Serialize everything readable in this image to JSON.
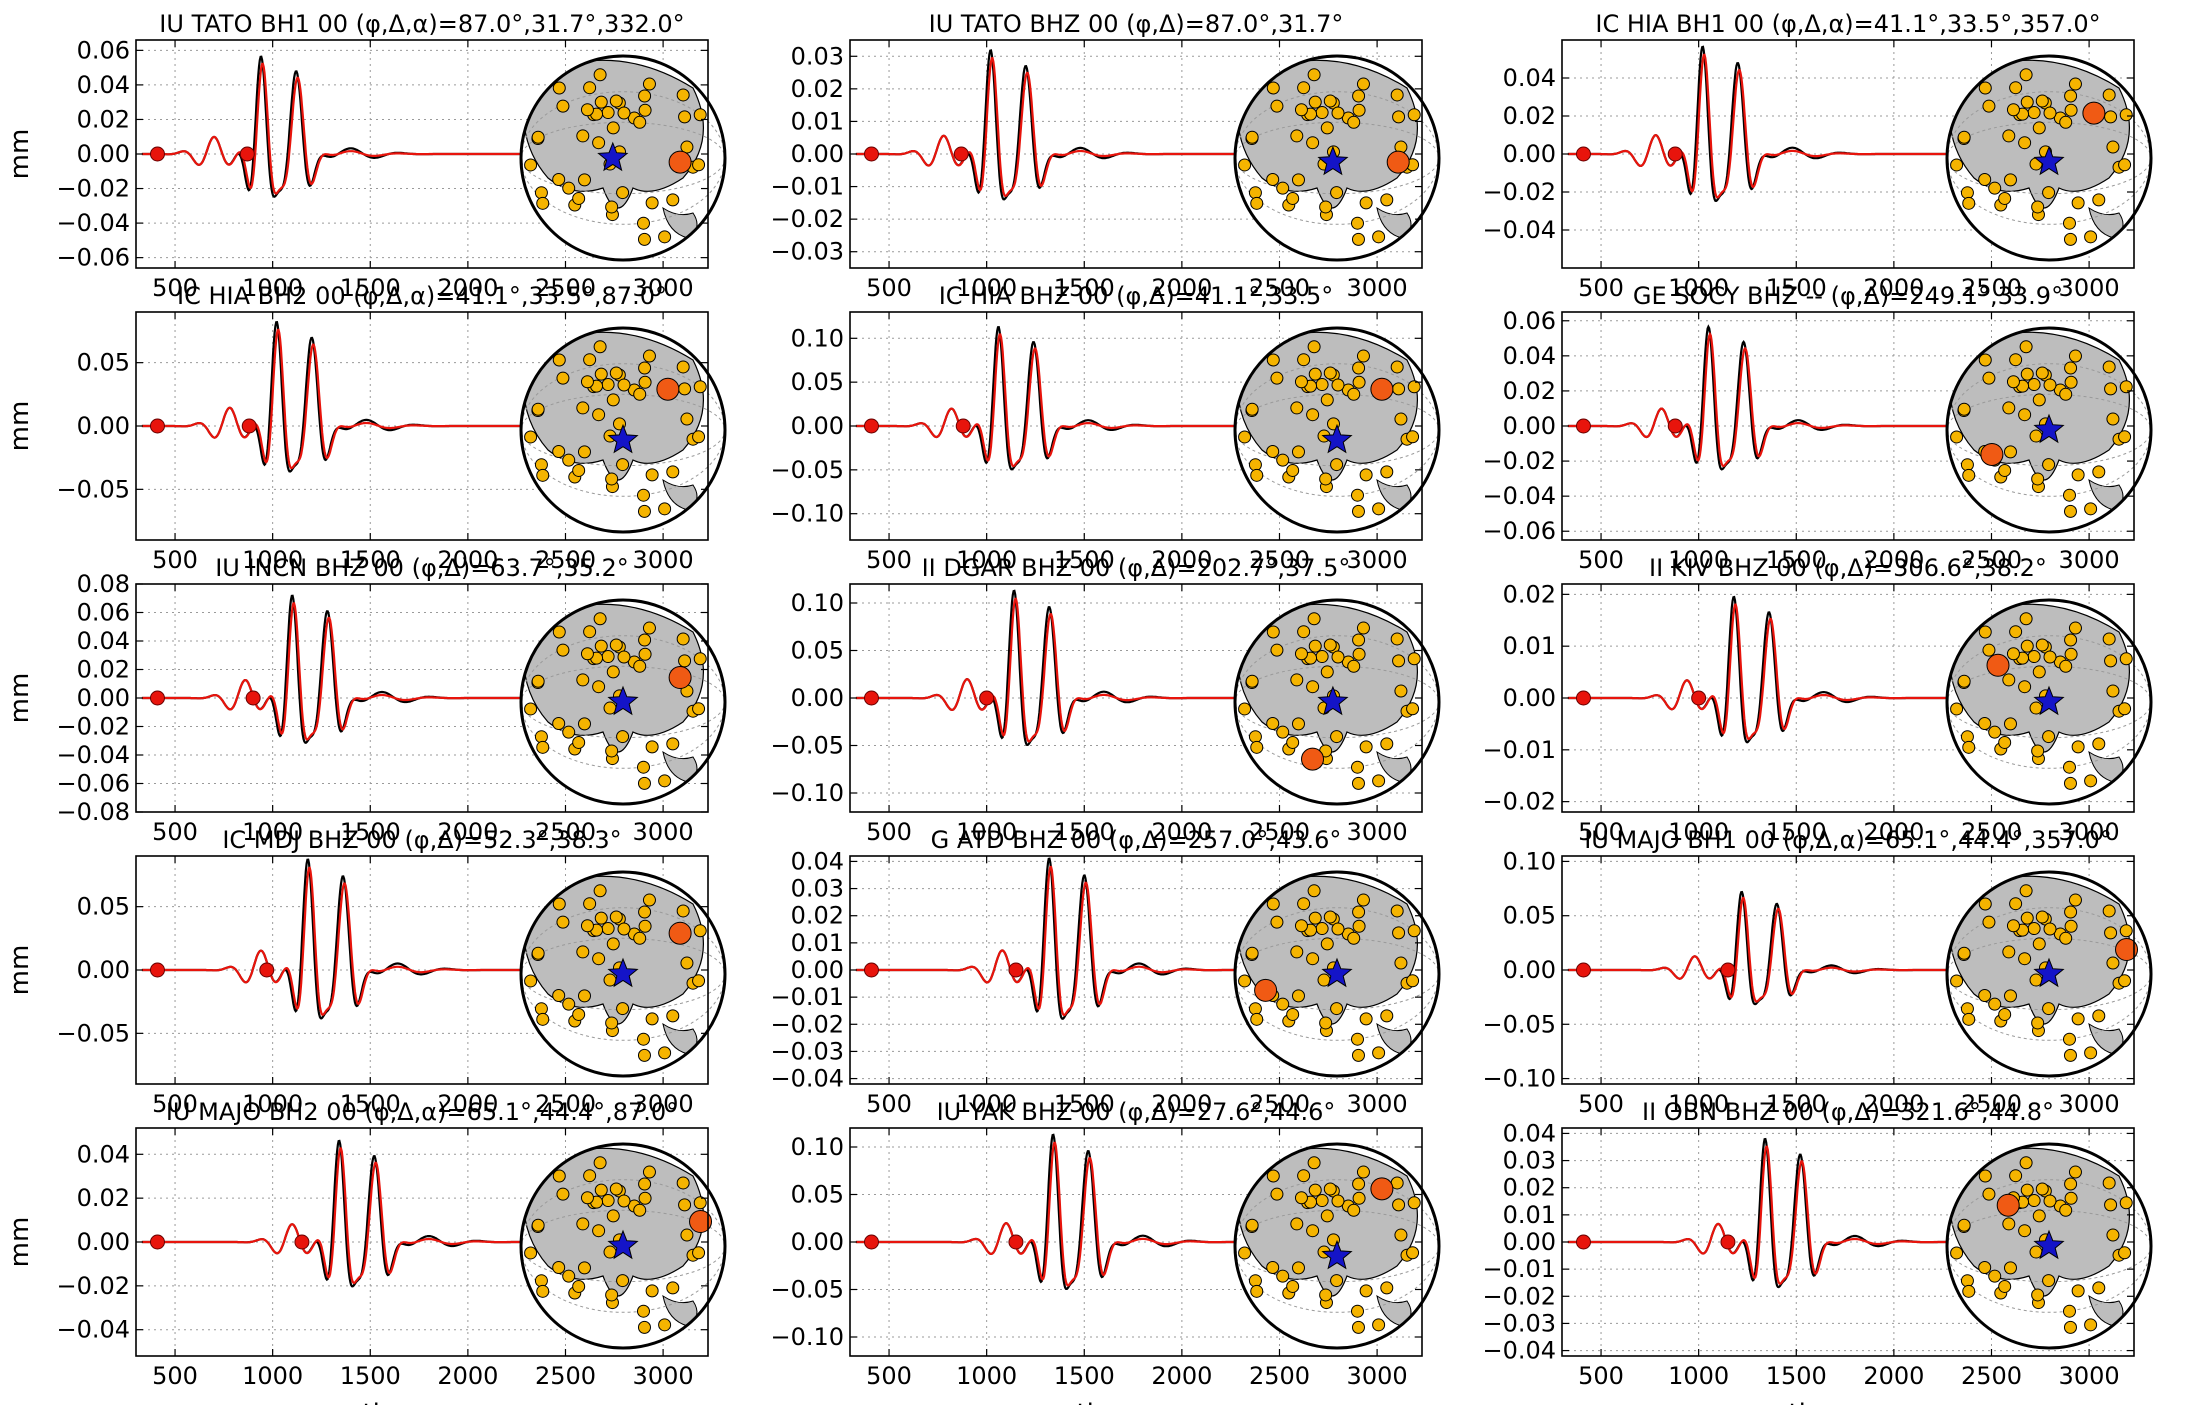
{
  "figure": {
    "ylabel": "mm",
    "xlabel": "time, sec",
    "colors": {
      "observed": "#000000",
      "synthetic": "#e8140c",
      "marker": "#e8140c",
      "station": "#f5b400",
      "highlight_station": "#f05a14",
      "event_star": "#1414c8",
      "land": "#bdbdbd",
      "ocean": "#ffffff",
      "grid": "#9a9a9a"
    },
    "icons": {
      "event": "blue-star-icon",
      "station": "orange-circle-icon"
    }
  },
  "chart_data": [
    {
      "type": "line",
      "title": "IU TATO BH1 00 (φ,Δ,α)=87.0°,31.7°,332.0°",
      "xlim": [
        300,
        3230
      ],
      "ylim": [
        -0.066,
        0.066
      ],
      "xticks": [
        500,
        1000,
        1500,
        2000,
        2500,
        3000
      ],
      "yticks": [
        -0.06,
        -0.04,
        -0.02,
        0.0,
        0.02,
        0.04,
        0.06
      ],
      "ytick_labels": [
        "−0.06",
        "−0.04",
        "−0.02",
        "0.00",
        "0.02",
        "0.04",
        "0.06"
      ],
      "pulse_center": 1000,
      "amp": 0.055,
      "ylabel": "mm",
      "xlabel": "",
      "markers_x": [
        410,
        870
      ],
      "series": [],
      "globe": {
        "highlight": [
          0.78,
          0.52
        ],
        "star": [
          0.45,
          0.5
        ]
      }
    },
    {
      "type": "line",
      "title": "IU TATO BHZ 00 (φ,Δ)=87.0°,31.7°",
      "xlim": [
        300,
        3230
      ],
      "ylim": [
        -0.035,
        0.035
      ],
      "xticks": [
        500,
        1000,
        1500,
        2000,
        2500,
        3000
      ],
      "yticks": [
        -0.03,
        -0.02,
        -0.01,
        0.0,
        0.01,
        0.02,
        0.03
      ],
      "ytick_labels": [
        "−0.03",
        "−0.02",
        "−0.01",
        "0.00",
        "0.01",
        "0.02",
        "0.03"
      ],
      "pulse_center": 1080,
      "amp": 0.031,
      "ylabel": "",
      "xlabel": "",
      "markers_x": [
        410,
        870
      ],
      "series": [],
      "globe": {
        "highlight": [
          0.8,
          0.52
        ],
        "star": [
          0.48,
          0.52
        ]
      }
    },
    {
      "type": "line",
      "title": "IC HIA BH1 00 (φ,Δ,α)=41.1°,33.5°,357.0°",
      "xlim": [
        300,
        3230
      ],
      "ylim": [
        -0.06,
        0.06
      ],
      "xticks": [
        500,
        1000,
        1500,
        2000,
        2500,
        3000
      ],
      "yticks": [
        -0.04,
        -0.02,
        0.0,
        0.02,
        0.04
      ],
      "ytick_labels": [
        "−0.04",
        "−0.02",
        "0.00",
        "0.02",
        "0.04"
      ],
      "pulse_center": 1080,
      "amp": 0.055,
      "ylabel": "",
      "xlabel": "",
      "markers_x": [
        410,
        880
      ],
      "series": [],
      "globe": {
        "highlight": [
          0.72,
          0.28
        ],
        "star": [
          0.5,
          0.52
        ]
      }
    },
    {
      "type": "line",
      "title": "IC HIA BH2 00 (φ,Δ,α)=41.1°,33.5°,87.0°",
      "xlim": [
        300,
        3230
      ],
      "ylim": [
        -0.09,
        0.09
      ],
      "xticks": [
        500,
        1000,
        1500,
        2000,
        2500,
        3000
      ],
      "yticks": [
        -0.05,
        0.0,
        0.05
      ],
      "ytick_labels": [
        "−0.05",
        "0.00",
        "0.05"
      ],
      "pulse_center": 1080,
      "amp": 0.08,
      "ylabel": "mm",
      "xlabel": "",
      "markers_x": [
        410,
        880
      ],
      "series": [],
      "globe": {
        "highlight": [
          0.72,
          0.3
        ],
        "star": [
          0.5,
          0.55
        ]
      }
    },
    {
      "type": "line",
      "title": "IC HIA BHZ 00 (φ,Δ)=41.1°,33.5°",
      "xlim": [
        300,
        3230
      ],
      "ylim": [
        -0.13,
        0.13
      ],
      "xticks": [
        500,
        1000,
        1500,
        2000,
        2500,
        3000
      ],
      "yticks": [
        -0.1,
        -0.05,
        0.0,
        0.05,
        0.1
      ],
      "ytick_labels": [
        "−0.10",
        "−0.05",
        "0.00",
        "0.05",
        "0.10"
      ],
      "pulse_center": 1120,
      "amp": 0.11,
      "ylabel": "",
      "xlabel": "",
      "markers_x": [
        410,
        880
      ],
      "series": [],
      "globe": {
        "highlight": [
          0.72,
          0.3
        ],
        "star": [
          0.5,
          0.55
        ]
      }
    },
    {
      "type": "line",
      "title": "GE SOCY BHZ -- (φ,Δ)=249.1°,33.9°",
      "xlim": [
        300,
        3230
      ],
      "ylim": [
        -0.065,
        0.065
      ],
      "xticks": [
        500,
        1000,
        1500,
        2000,
        2500,
        3000
      ],
      "yticks": [
        -0.06,
        -0.04,
        -0.02,
        0.0,
        0.02,
        0.04,
        0.06
      ],
      "ytick_labels": [
        "−0.06",
        "−0.04",
        "−0.02",
        "0.00",
        "0.02",
        "0.04",
        "0.06"
      ],
      "pulse_center": 1110,
      "amp": 0.055,
      "ylabel": "",
      "xlabel": "",
      "markers_x": [
        410,
        880
      ],
      "series": [],
      "globe": {
        "highlight": [
          0.22,
          0.62
        ],
        "star": [
          0.5,
          0.5
        ]
      }
    },
    {
      "type": "line",
      "title": "IU INCN BHZ 00 (φ,Δ)=63.7°,35.2°",
      "xlim": [
        300,
        3230
      ],
      "ylim": [
        -0.08,
        0.08
      ],
      "xticks": [
        500,
        1000,
        1500,
        2000,
        2500,
        3000
      ],
      "yticks": [
        -0.08,
        -0.06,
        -0.04,
        -0.02,
        0.0,
        0.02,
        0.04,
        0.06,
        0.08
      ],
      "ytick_labels": [
        "−0.08",
        "−0.06",
        "−0.04",
        "−0.02",
        "0.00",
        "0.02",
        "0.04",
        "0.06",
        "0.08"
      ],
      "pulse_center": 1160,
      "amp": 0.07,
      "ylabel": "mm",
      "xlabel": "",
      "markers_x": [
        410,
        900
      ],
      "series": [],
      "globe": {
        "highlight": [
          0.78,
          0.38
        ],
        "star": [
          0.5,
          0.5
        ]
      }
    },
    {
      "type": "line",
      "title": "II DGAR BHZ 00 (φ,Δ)=202.7°,37.5°",
      "xlim": [
        300,
        3230
      ],
      "ylim": [
        -0.12,
        0.12
      ],
      "xticks": [
        500,
        1000,
        1500,
        2000,
        2500,
        3000
      ],
      "yticks": [
        -0.1,
        -0.05,
        0.0,
        0.05,
        0.1
      ],
      "ytick_labels": [
        "−0.10",
        "−0.05",
        "0.00",
        "0.05",
        "0.10"
      ],
      "pulse_center": 1200,
      "amp": 0.11,
      "ylabel": "",
      "xlabel": "",
      "markers_x": [
        410,
        1000
      ],
      "series": [],
      "globe": {
        "highlight": [
          0.38,
          0.78
        ],
        "star": [
          0.48,
          0.5
        ]
      }
    },
    {
      "type": "line",
      "title": "II KIV BHZ 00 (φ,Δ)=306.6°,38.2°",
      "xlim": [
        300,
        3230
      ],
      "ylim": [
        -0.022,
        0.022
      ],
      "xticks": [
        500,
        1000,
        1500,
        2000,
        2500,
        3000
      ],
      "yticks": [
        -0.02,
        -0.01,
        0.0,
        0.01,
        0.02
      ],
      "ytick_labels": [
        "−0.02",
        "−0.01",
        "0.00",
        "0.01",
        "0.02"
      ],
      "pulse_center": 1240,
      "amp": 0.019,
      "ylabel": "",
      "xlabel": "",
      "markers_x": [
        410,
        1000
      ],
      "series": [],
      "globe": {
        "highlight": [
          0.25,
          0.32
        ],
        "star": [
          0.5,
          0.5
        ]
      }
    },
    {
      "type": "line",
      "title": "IC MDJ BHZ 00 (φ,Δ)=52.3°,38.3°",
      "xlim": [
        300,
        3230
      ],
      "ylim": [
        -0.09,
        0.09
      ],
      "xticks": [
        500,
        1000,
        1500,
        2000,
        2500,
        3000
      ],
      "yticks": [
        -0.05,
        0.0,
        0.05
      ],
      "ytick_labels": [
        "−0.05",
        "0.00",
        "0.05"
      ],
      "pulse_center": 1240,
      "amp": 0.085,
      "ylabel": "mm",
      "xlabel": "",
      "markers_x": [
        410,
        970
      ],
      "series": [],
      "globe": {
        "highlight": [
          0.78,
          0.3
        ],
        "star": [
          0.5,
          0.5
        ]
      }
    },
    {
      "type": "line",
      "title": "G ATD BHZ 00 (φ,Δ)=257.0°,43.6°",
      "xlim": [
        300,
        3230
      ],
      "ylim": [
        -0.042,
        0.042
      ],
      "xticks": [
        500,
        1000,
        1500,
        2000,
        2500,
        3000
      ],
      "yticks": [
        -0.04,
        -0.03,
        -0.02,
        -0.01,
        0.0,
        0.01,
        0.02,
        0.03,
        0.04
      ],
      "ytick_labels": [
        "−0.04",
        "−0.03",
        "−0.02",
        "−0.01",
        "0.00",
        "0.01",
        "0.02",
        "0.03",
        "0.04"
      ],
      "pulse_center": 1380,
      "amp": 0.04,
      "ylabel": "",
      "xlabel": "",
      "markers_x": [
        410,
        1150
      ],
      "series": [],
      "globe": {
        "highlight": [
          0.15,
          0.58
        ],
        "star": [
          0.5,
          0.5
        ]
      }
    },
    {
      "type": "line",
      "title": "IU MAJO BH1 00 (φ,Δ,α)=65.1°,44.4°,357.0°",
      "xlim": [
        300,
        3230
      ],
      "ylim": [
        -0.105,
        0.105
      ],
      "xticks": [
        500,
        1000,
        1500,
        2000,
        2500,
        3000
      ],
      "yticks": [
        -0.1,
        -0.05,
        0.0,
        0.05,
        0.1
      ],
      "ytick_labels": [
        "−0.10",
        "−0.05",
        "0.00",
        "0.05",
        "0.10"
      ],
      "pulse_center": 1280,
      "amp": 0.07,
      "ylabel": "",
      "xlabel": "",
      "markers_x": [
        410,
        1150
      ],
      "series": [],
      "globe": {
        "highlight": [
          0.88,
          0.38
        ],
        "star": [
          0.5,
          0.5
        ]
      }
    },
    {
      "type": "line",
      "title": "IU MAJO BH2 00 (φ,Δ,α)=65.1°,44.4°,87.0°",
      "xlim": [
        300,
        3230
      ],
      "ylim": [
        -0.052,
        0.052
      ],
      "xticks": [
        500,
        1000,
        1500,
        2000,
        2500,
        3000
      ],
      "yticks": [
        -0.04,
        -0.02,
        0.0,
        0.02,
        0.04
      ],
      "ytick_labels": [
        "−0.04",
        "−0.02",
        "0.00",
        "0.02",
        "0.04"
      ],
      "pulse_center": 1400,
      "amp": 0.045,
      "ylabel": "mm",
      "xlabel": "time, sec",
      "markers_x": [
        410,
        1150
      ],
      "series": [],
      "globe": {
        "highlight": [
          0.88,
          0.38
        ],
        "star": [
          0.5,
          0.5
        ]
      }
    },
    {
      "type": "line",
      "title": "IU YAK BHZ 00 (φ,Δ)=27.6°,44.6°",
      "xlim": [
        300,
        3230
      ],
      "ylim": [
        -0.12,
        0.12
      ],
      "xticks": [
        500,
        1000,
        1500,
        2000,
        2500,
        3000
      ],
      "yticks": [
        -0.1,
        -0.05,
        0.0,
        0.05,
        0.1
      ],
      "ytick_labels": [
        "−0.10",
        "−0.05",
        "0.00",
        "0.05",
        "0.10"
      ],
      "pulse_center": 1400,
      "amp": 0.11,
      "ylabel": "",
      "xlabel": "time, sec",
      "markers_x": [
        410,
        1150
      ],
      "series": [],
      "globe": {
        "highlight": [
          0.72,
          0.22
        ],
        "star": [
          0.5,
          0.55
        ]
      }
    },
    {
      "type": "line",
      "title": "II OBN BHZ 00 (φ,Δ)=321.6°,44.8°",
      "xlim": [
        300,
        3230
      ],
      "ylim": [
        -0.042,
        0.042
      ],
      "xticks": [
        500,
        1000,
        1500,
        2000,
        2500,
        3000
      ],
      "yticks": [
        -0.04,
        -0.03,
        -0.02,
        -0.01,
        0.0,
        0.01,
        0.02,
        0.03,
        0.04
      ],
      "ytick_labels": [
        "−0.04",
        "−0.03",
        "−0.02",
        "−0.01",
        "0.00",
        "0.01",
        "0.02",
        "0.03",
        "0.04"
      ],
      "pulse_center": 1400,
      "amp": 0.037,
      "ylabel": "",
      "xlabel": "time, sec",
      "markers_x": [
        410,
        1150
      ],
      "series": [],
      "globe": {
        "highlight": [
          0.3,
          0.3
        ],
        "star": [
          0.5,
          0.5
        ]
      }
    }
  ]
}
